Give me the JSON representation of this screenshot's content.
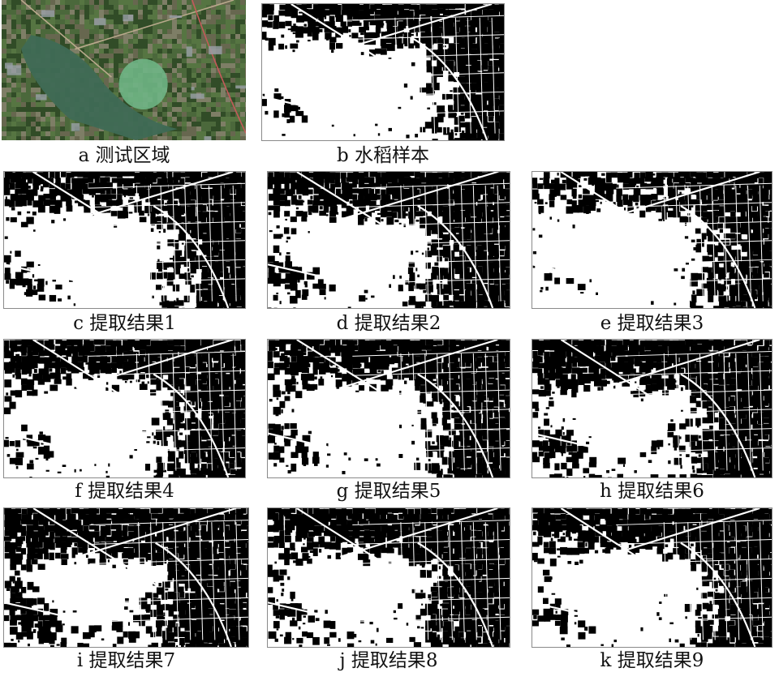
{
  "panels": [
    {
      "id": "a",
      "caption": "a 测试区域",
      "kind": "photo",
      "seed": 11
    },
    {
      "id": "b",
      "caption": "b 水稻样本",
      "kind": "mask",
      "seed": 23
    },
    {
      "id": "c",
      "caption": "c 提取结果1",
      "kind": "mask",
      "seed": 37
    },
    {
      "id": "d",
      "caption": "d 提取结果2",
      "kind": "mask",
      "seed": 41
    },
    {
      "id": "e",
      "caption": "e 提取结果3",
      "kind": "mask",
      "seed": 53
    },
    {
      "id": "f",
      "caption": "f 提取结果4",
      "kind": "mask",
      "seed": 61
    },
    {
      "id": "g",
      "caption": "g 提取结果5",
      "kind": "mask",
      "seed": 73
    },
    {
      "id": "h",
      "caption": "h 提取结果6",
      "kind": "mask",
      "seed": 87
    },
    {
      "id": "i",
      "caption": "i 提取结果7",
      "kind": "mask",
      "seed": 97
    },
    {
      "id": "j",
      "caption": "j 提取结果8",
      "kind": "mask",
      "seed": 101
    },
    {
      "id": "k",
      "caption": "k 提取结果9",
      "kind": "mask",
      "seed": 113
    }
  ]
}
